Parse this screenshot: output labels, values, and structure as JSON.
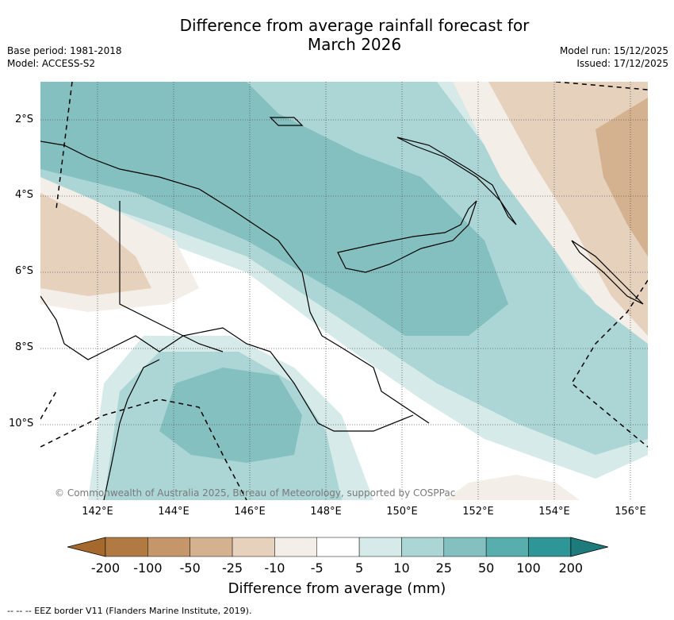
{
  "title_line1": "Difference from average rainfall forecast for",
  "title_line2": "March 2026",
  "meta_left": {
    "base_period": "Base period: 1981-2018",
    "model": "Model: ACCESS-S2"
  },
  "meta_right": {
    "model_run": "Model run: 15/12/2025",
    "issued": "Issued: 17/12/2025"
  },
  "map": {
    "lat_labels": [
      "2°S",
      "4°S",
      "6°S",
      "8°S",
      "10°S"
    ],
    "lon_labels": [
      "142°E",
      "144°E",
      "146°E",
      "148°E",
      "150°E",
      "152°E",
      "154°E",
      "156°E"
    ],
    "copyright": "© Commonwealth of Australia 2025, Bureau of Meteorology, supported by COSPPac"
  },
  "colorbar": {
    "title": "Difference from average (mm)",
    "labels": [
      "-200",
      "-100",
      "-50",
      "-25",
      "-10",
      "-5",
      "5",
      "10",
      "25",
      "50",
      "100",
      "200"
    ],
    "colors": [
      "#a5692e",
      "#b07a42",
      "#c4966a",
      "#d4b290",
      "#e6d1bc",
      "#f3eee7",
      "#ffffff",
      "#d6ebe9",
      "#acd6d6",
      "#84c0c0",
      "#58adad",
      "#2e9696",
      "#1d7b7b"
    ]
  },
  "legend": {
    "eez": "--  --  -- EEZ border V11 (Flanders Marine Institute, 2019)."
  }
}
